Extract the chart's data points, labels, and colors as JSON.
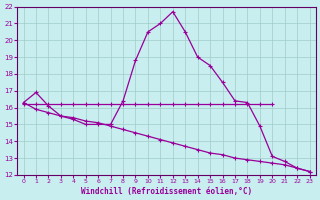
{
  "background_color": "#c8eef0",
  "grid_color": "#a0ccc8",
  "line_color": "#990099",
  "spine_color": "#660066",
  "xlim": [
    -0.5,
    23.5
  ],
  "ylim": [
    12,
    22
  ],
  "xlabel": "Windchill (Refroidissement éolien,°C)",
  "xtick_labels": [
    "0",
    "1",
    "2",
    "3",
    "4",
    "5",
    "6",
    "7",
    "8",
    "9",
    "10",
    "11",
    "12",
    "13",
    "14",
    "15",
    "16",
    "17",
    "18",
    "19",
    "20",
    "21",
    "22",
    "23"
  ],
  "xtick_vals": [
    0,
    1,
    2,
    3,
    4,
    5,
    6,
    7,
    8,
    9,
    10,
    11,
    12,
    13,
    14,
    15,
    16,
    17,
    18,
    19,
    20,
    21,
    22,
    23
  ],
  "ytick_vals": [
    12,
    13,
    14,
    15,
    16,
    17,
    18,
    19,
    20,
    21,
    22
  ],
  "line1_x": [
    0,
    1,
    2,
    3,
    4,
    5,
    6,
    7,
    8,
    9,
    10,
    11,
    12,
    13,
    14,
    15,
    16,
    17,
    18,
    19,
    20,
    21,
    22,
    23
  ],
  "line1_y": [
    16.3,
    16.9,
    16.1,
    15.5,
    15.3,
    15.0,
    15.0,
    15.0,
    16.4,
    18.8,
    20.5,
    21.0,
    21.7,
    20.5,
    19.0,
    18.5,
    17.5,
    16.4,
    16.3,
    14.9,
    13.1,
    12.8,
    12.4,
    12.2
  ],
  "line2_x": [
    0,
    1,
    2,
    3,
    4,
    5,
    6,
    7,
    8,
    9,
    10,
    11,
    12,
    13,
    14,
    15,
    16,
    17,
    18,
    19,
    20
  ],
  "line2_y": [
    16.2,
    16.2,
    16.2,
    16.2,
    16.2,
    16.2,
    16.2,
    16.2,
    16.2,
    16.2,
    16.2,
    16.2,
    16.2,
    16.2,
    16.2,
    16.2,
    16.2,
    16.2,
    16.2,
    16.2,
    16.2
  ],
  "line3_x": [
    0,
    1,
    2,
    3,
    4,
    5,
    6,
    7,
    8,
    9,
    10,
    11,
    12,
    13,
    14,
    15,
    16,
    17,
    18,
    19,
    20,
    21,
    22,
    23
  ],
  "line3_y": [
    16.3,
    15.9,
    15.7,
    15.5,
    15.4,
    15.2,
    15.1,
    14.9,
    14.7,
    14.5,
    14.3,
    14.1,
    13.9,
    13.7,
    13.5,
    13.3,
    13.2,
    13.0,
    12.9,
    12.8,
    12.7,
    12.6,
    12.4,
    12.2
  ]
}
